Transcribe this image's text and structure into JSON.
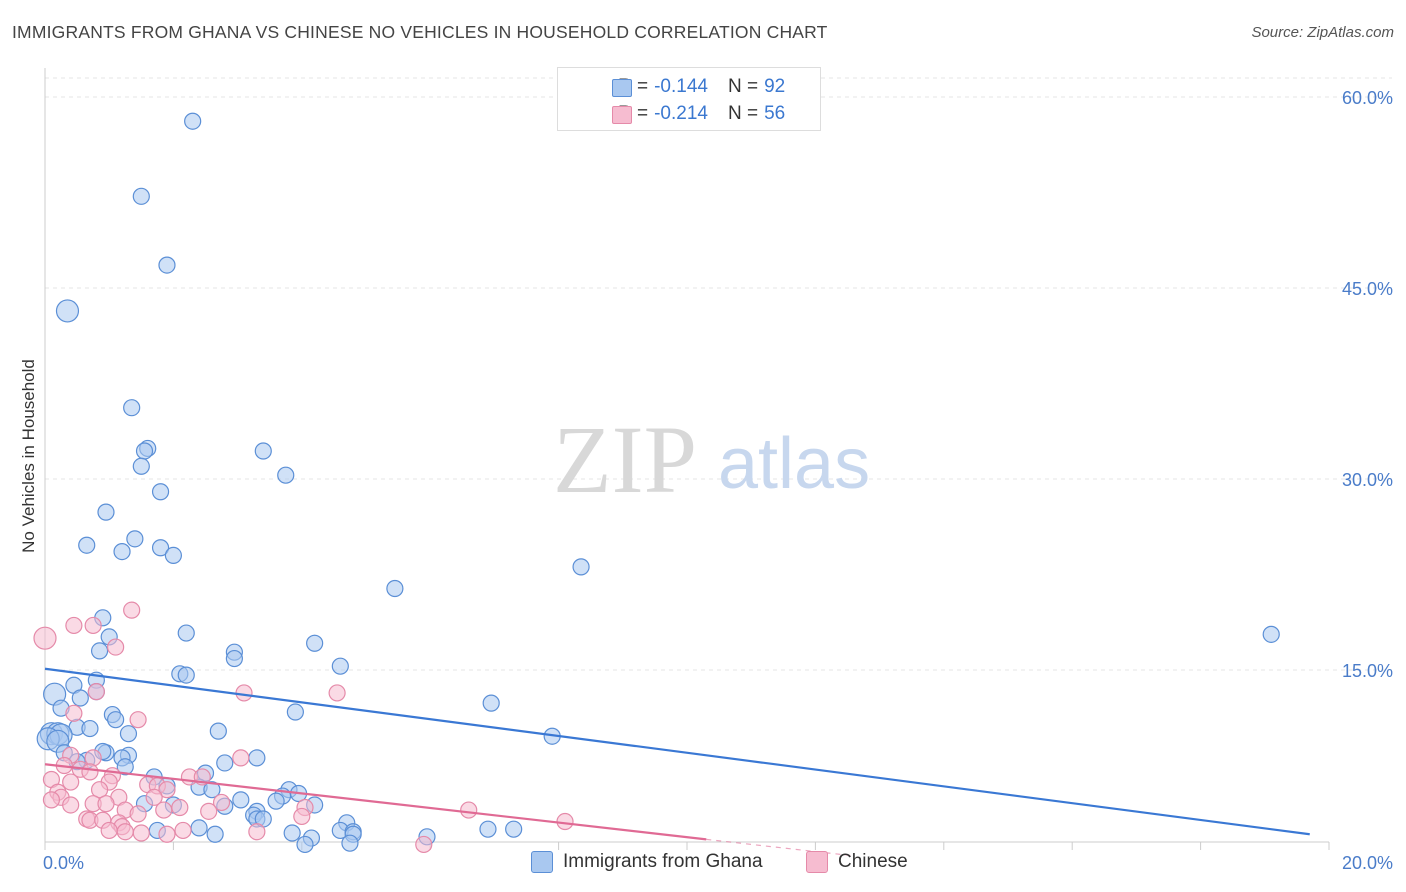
{
  "title": "IMMIGRANTS FROM GHANA VS CHINESE NO VEHICLES IN HOUSEHOLD CORRELATION CHART",
  "source": "Source: ZipAtlas.com",
  "watermark": {
    "zip": "ZIP",
    "atlas": "atlas"
  },
  "legend": {
    "r_label": "R =",
    "n_label": "N =",
    "rows": [
      {
        "r": "-0.144",
        "n": "92"
      },
      {
        "r": "-0.214",
        "n": "56"
      }
    ]
  },
  "colors": {
    "blue_fill": "#a9c8f0",
    "blue_stroke": "#5b8fd6",
    "blue_line": "#3a78d4",
    "pink_fill": "#f6bcd0",
    "pink_stroke": "#e58aa9",
    "pink_line": "#e06a94",
    "grid": "#e4e4e4",
    "tick_text": "#4a7cc9"
  },
  "chart_data": {
    "type": "scatter",
    "title": "IMMIGRANTS FROM GHANA VS CHINESE NO VEHICLES IN HOUSEHOLD CORRELATION CHART",
    "xlabel": "",
    "ylabel": "No Vehicles in Household",
    "xlim": [
      0,
      20
    ],
    "ylim": [
      0,
      62
    ],
    "x_tick_labels": [
      "0.0%",
      "20.0%"
    ],
    "y_ticks": [
      15,
      30,
      45,
      60
    ],
    "y_tick_labels": [
      "15.0%",
      "30.0%",
      "45.0%",
      "60.0%"
    ],
    "grid": true,
    "legend_position": "top-center",
    "series": [
      {
        "name": "Immigrants from Ghana",
        "color": "#a9c8f0",
        "trend": {
          "x": [
            0,
            19.7
          ],
          "y": [
            15.1,
            2.1
          ]
        },
        "points": [
          [
            2.3,
            58.1
          ],
          [
            1.5,
            52.2
          ],
          [
            1.9,
            46.8
          ],
          [
            0.35,
            43.2
          ],
          [
            1.35,
            35.6
          ],
          [
            1.6,
            32.4
          ],
          [
            1.55,
            32.2
          ],
          [
            3.4,
            32.2
          ],
          [
            1.5,
            31.0
          ],
          [
            3.75,
            30.3
          ],
          [
            1.8,
            29.0
          ],
          [
            0.95,
            27.4
          ],
          [
            1.4,
            25.3
          ],
          [
            0.65,
            24.8
          ],
          [
            1.8,
            24.6
          ],
          [
            1.2,
            24.3
          ],
          [
            2.0,
            24.0
          ],
          [
            8.35,
            23.1
          ],
          [
            5.45,
            21.4
          ],
          [
            0.9,
            19.1
          ],
          [
            19.1,
            17.8
          ],
          [
            2.2,
            17.9
          ],
          [
            1.0,
            17.6
          ],
          [
            4.2,
            17.1
          ],
          [
            0.85,
            16.5
          ],
          [
            2.95,
            16.4
          ],
          [
            2.95,
            15.9
          ],
          [
            4.6,
            15.3
          ],
          [
            2.1,
            14.7
          ],
          [
            2.2,
            14.6
          ],
          [
            0.8,
            14.2
          ],
          [
            0.45,
            13.8
          ],
          [
            0.15,
            13.1
          ],
          [
            0.8,
            13.3
          ],
          [
            0.55,
            12.8
          ],
          [
            6.95,
            12.4
          ],
          [
            0.25,
            12.0
          ],
          [
            3.9,
            11.7
          ],
          [
            1.05,
            11.5
          ],
          [
            1.1,
            11.1
          ],
          [
            0.5,
            10.5
          ],
          [
            0.7,
            10.4
          ],
          [
            0.1,
            10.0
          ],
          [
            0.2,
            10.0
          ],
          [
            0.25,
            9.9
          ],
          [
            2.7,
            10.2
          ],
          [
            1.3,
            10.0
          ],
          [
            0.05,
            9.6
          ],
          [
            0.2,
            9.4
          ],
          [
            7.9,
            9.8
          ],
          [
            0.3,
            8.5
          ],
          [
            0.95,
            8.5
          ],
          [
            1.3,
            8.3
          ],
          [
            1.2,
            8.1
          ],
          [
            0.65,
            7.9
          ],
          [
            0.5,
            7.8
          ],
          [
            3.3,
            8.1
          ],
          [
            2.8,
            7.7
          ],
          [
            1.25,
            7.4
          ],
          [
            2.5,
            6.9
          ],
          [
            1.7,
            6.6
          ],
          [
            1.9,
            5.9
          ],
          [
            2.4,
            5.8
          ],
          [
            2.6,
            5.6
          ],
          [
            3.8,
            5.6
          ],
          [
            3.7,
            5.1
          ],
          [
            3.95,
            5.3
          ],
          [
            3.05,
            4.8
          ],
          [
            3.6,
            4.7
          ],
          [
            1.55,
            4.5
          ],
          [
            2.0,
            4.4
          ],
          [
            2.8,
            4.3
          ],
          [
            4.2,
            4.4
          ],
          [
            3.3,
            3.9
          ],
          [
            3.25,
            3.6
          ],
          [
            3.3,
            3.3
          ],
          [
            3.4,
            3.3
          ],
          [
            4.7,
            3.0
          ],
          [
            2.4,
            2.6
          ],
          [
            4.6,
            2.4
          ],
          [
            4.8,
            2.3
          ],
          [
            6.9,
            2.5
          ],
          [
            7.3,
            2.5
          ],
          [
            4.8,
            2.1
          ],
          [
            2.65,
            2.1
          ],
          [
            3.85,
            2.2
          ],
          [
            5.95,
            1.9
          ],
          [
            4.15,
            1.8
          ],
          [
            4.05,
            1.3
          ],
          [
            4.75,
            1.4
          ],
          [
            1.75,
            2.4
          ],
          [
            0.9,
            8.6
          ]
        ],
        "sizes": {
          "large": [
            [
              0.35,
              43.2
            ],
            [
              0.15,
              13.1
            ],
            [
              0.1,
              10.0
            ],
            [
              0.2,
              10.0
            ],
            [
              0.25,
              9.9
            ],
            [
              0.05,
              9.6
            ],
            [
              0.2,
              9.4
            ]
          ]
        }
      },
      {
        "name": "Chinese",
        "color": "#f6bcd0",
        "trend": {
          "x": [
            0,
            10.3
          ],
          "y": [
            7.6,
            1.7
          ]
        },
        "trend_dashed": {
          "x": [
            10.3,
            12.6
          ],
          "y": [
            1.7,
            0.4
          ]
        },
        "points": [
          [
            0.0,
            17.5
          ],
          [
            1.35,
            19.7
          ],
          [
            0.45,
            18.5
          ],
          [
            0.75,
            18.5
          ],
          [
            1.1,
            16.8
          ],
          [
            3.1,
            13.2
          ],
          [
            4.55,
            13.2
          ],
          [
            0.8,
            13.3
          ],
          [
            0.45,
            11.6
          ],
          [
            1.45,
            11.1
          ],
          [
            0.4,
            8.3
          ],
          [
            0.75,
            8.1
          ],
          [
            0.3,
            7.5
          ],
          [
            3.05,
            8.1
          ],
          [
            0.55,
            7.2
          ],
          [
            0.7,
            7.0
          ],
          [
            1.05,
            6.7
          ],
          [
            2.25,
            6.6
          ],
          [
            2.45,
            6.6
          ],
          [
            0.1,
            6.4
          ],
          [
            0.4,
            6.2
          ],
          [
            1.0,
            6.2
          ],
          [
            1.6,
            6.0
          ],
          [
            1.75,
            5.9
          ],
          [
            1.9,
            5.6
          ],
          [
            0.85,
            5.6
          ],
          [
            0.2,
            5.4
          ],
          [
            1.15,
            5.0
          ],
          [
            0.25,
            5.0
          ],
          [
            0.1,
            4.8
          ],
          [
            1.7,
            5.0
          ],
          [
            2.75,
            4.6
          ],
          [
            0.4,
            4.4
          ],
          [
            0.75,
            4.5
          ],
          [
            0.95,
            4.5
          ],
          [
            1.25,
            4.0
          ],
          [
            1.85,
            4.0
          ],
          [
            2.1,
            4.2
          ],
          [
            2.55,
            3.9
          ],
          [
            6.6,
            4.0
          ],
          [
            4.05,
            4.2
          ],
          [
            1.45,
            3.7
          ],
          [
            0.65,
            3.3
          ],
          [
            0.7,
            3.2
          ],
          [
            0.9,
            3.2
          ],
          [
            1.15,
            3.0
          ],
          [
            1.2,
            2.7
          ],
          [
            2.15,
            2.4
          ],
          [
            1.0,
            2.4
          ],
          [
            1.25,
            2.3
          ],
          [
            1.5,
            2.2
          ],
          [
            1.9,
            2.1
          ],
          [
            3.3,
            2.3
          ],
          [
            8.1,
            3.1
          ],
          [
            4.0,
            3.5
          ],
          [
            5.9,
            1.3
          ]
        ],
        "sizes": {
          "large": [
            [
              0.0,
              17.5
            ]
          ]
        }
      }
    ]
  },
  "bottom_legend": [
    {
      "label": "Immigrants from Ghana"
    },
    {
      "label": "Chinese"
    }
  ]
}
